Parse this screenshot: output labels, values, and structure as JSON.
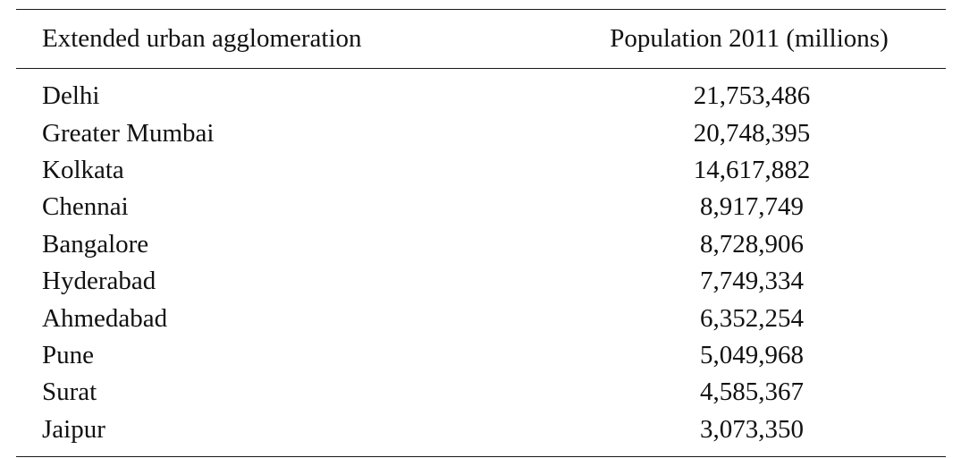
{
  "table": {
    "columns": [
      "Extended urban agglomeration",
      "Population 2011 (millions)"
    ],
    "rows": [
      {
        "name": "Delhi",
        "population": "21,753,486"
      },
      {
        "name": "Greater Mumbai",
        "population": "20,748,395"
      },
      {
        "name": "Kolkata",
        "population": "14,617,882"
      },
      {
        "name": "Chennai",
        "population": "8,917,749"
      },
      {
        "name": "Bangalore",
        "population": "8,728,906"
      },
      {
        "name": "Hyderabad",
        "population": "7,749,334"
      },
      {
        "name": "Ahmedabad",
        "population": "6,352,254"
      },
      {
        "name": "Pune",
        "population": "5,049,968"
      },
      {
        "name": "Surat",
        "population": "4,585,367"
      },
      {
        "name": "Jaipur",
        "population": "3,073,350"
      }
    ]
  }
}
